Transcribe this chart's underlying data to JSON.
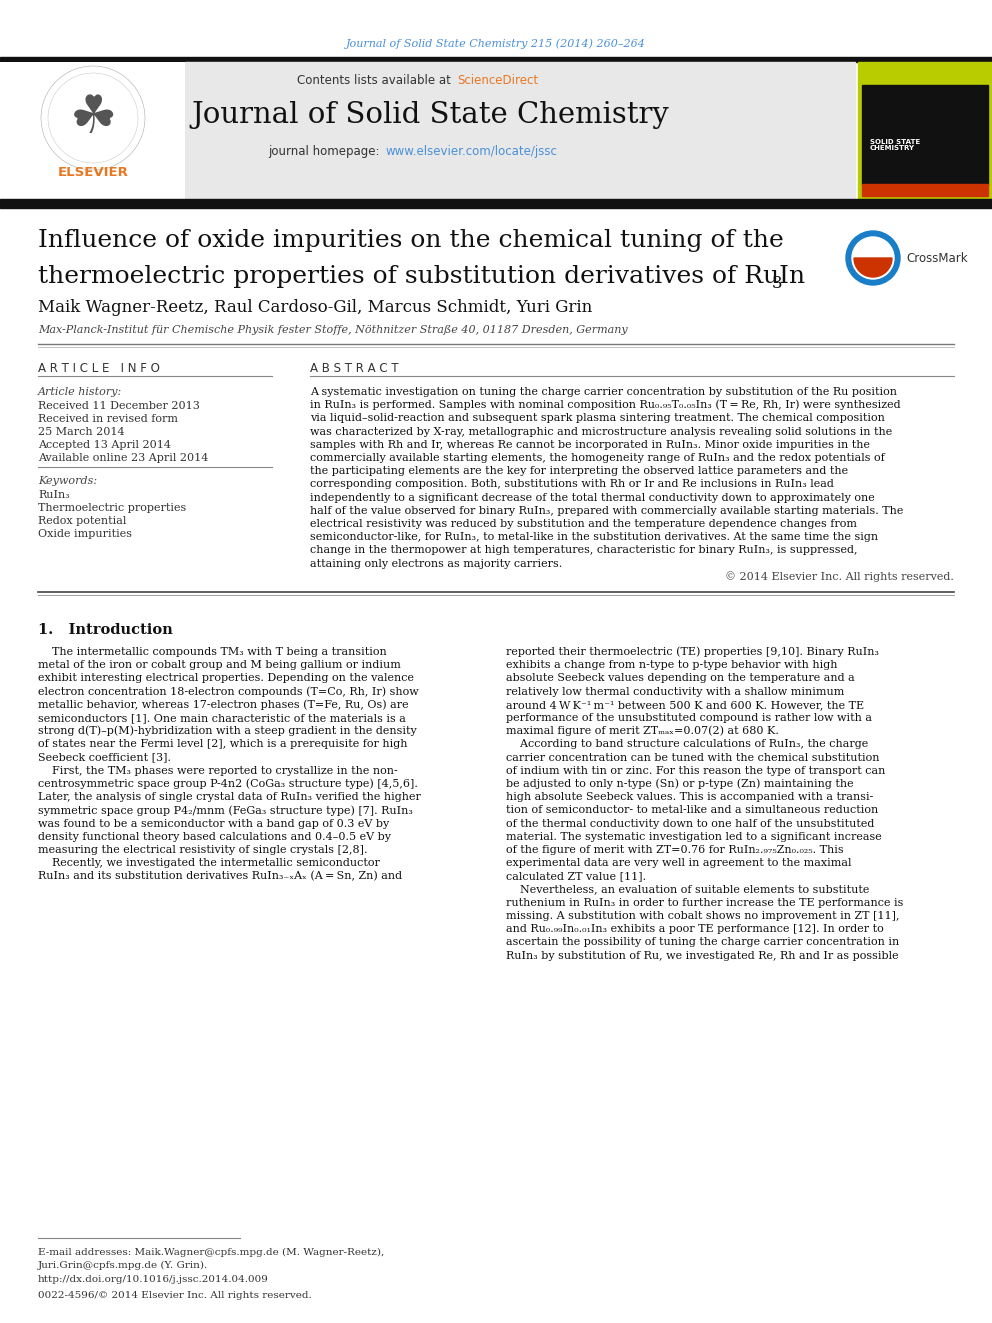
{
  "page_bg": "#ffffff",
  "top_citation": "Journal of Solid State Chemistry 215 (2014) 260–264",
  "top_citation_color": "#4a90d9",
  "header_bg": "#e8e8e8",
  "contents_text": "Contents lists available at ",
  "sciencedirect_text": "ScienceDirect",
  "sciencedirect_color": "#e87722",
  "journal_name": "Journal of Solid State Chemistry",
  "journal_homepage_text": "journal homepage: ",
  "journal_url": "www.elsevier.com/locate/jssc",
  "journal_url_color": "#4a90d9",
  "title_line1": "Influence of oxide impurities on the chemical tuning of the",
  "title_line2": "thermoelectric properties of substitution derivatives of RuIn",
  "title_subscript": "3",
  "authors": "Maik Wagner-Reetz, Raul Cardoso-Gil, Marcus Schmidt, Yuri Grin",
  "affiliation": "Max-Planck-Institut für Chemische Physik fester Stoffe, Nöthnitzer Straße 40, 01187 Dresden, Germany",
  "article_info_header": "A R T I C L E   I N F O",
  "abstract_header": "A B S T R A C T",
  "article_history_label": "Article history:",
  "received_1": "Received 11 December 2013",
  "received_revised": "Received in revised form",
  "revised_date": "25 March 2014",
  "accepted": "Accepted 13 April 2014",
  "available": "Available online 23 April 2014",
  "keywords_label": "Keywords:",
  "keyword1": "RuIn₃",
  "keyword2": "Thermoelectric properties",
  "keyword3": "Redox potential",
  "keyword4": "Oxide impurities",
  "copyright": "© 2014 Elsevier Inc. All rights reserved.",
  "intro_header": "1.   Introduction",
  "bottom_footnote_line1": "E-mail addresses: Maik.Wagner@cpfs.mpg.de (M. Wagner-Reetz),",
  "bottom_footnote_line2": "Juri.Grin@cpfs.mpg.de (Y. Grin).",
  "bottom_doi": "http://dx.doi.org/10.1016/j.jssc.2014.04.009",
  "bottom_issn": "0022-4596/© 2014 Elsevier Inc. All rights reserved."
}
